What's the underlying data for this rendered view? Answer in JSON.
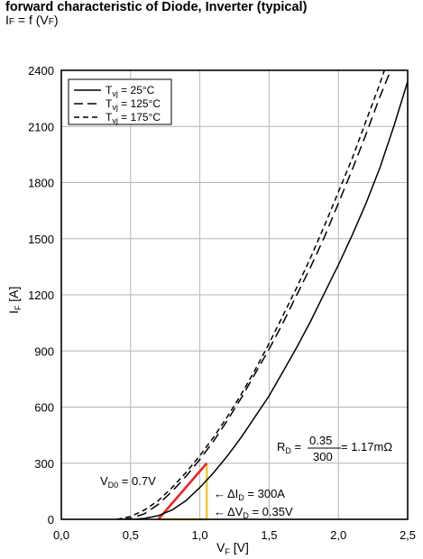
{
  "header": {
    "title": "forward characteristic of Diode, Inverter (typical)",
    "subtitle_main": "I",
    "subtitle_sub1": "F",
    "subtitle_mid": " = f (V",
    "subtitle_sub2": "F",
    "subtitle_end": ")"
  },
  "chart_data": {
    "type": "line",
    "xlabel_main": "V",
    "xlabel_sub": "F",
    "xlabel_unit": " [V]",
    "ylabel_main": "I",
    "ylabel_sub": "F",
    "ylabel_unit": " [A]",
    "xlim": [
      0,
      2.5
    ],
    "ylim": [
      0,
      2400
    ],
    "x_ticks": [
      0,
      0.5,
      1.0,
      1.5,
      2.0,
      2.5
    ],
    "x_tick_labels": [
      "0,0",
      "0,5",
      "1,0",
      "1,5",
      "2,0",
      "2,5"
    ],
    "y_ticks": [
      0,
      300,
      600,
      900,
      1200,
      1500,
      1800,
      2100,
      2400
    ],
    "y_tick_labels": [
      "0",
      "300",
      "600",
      "900",
      "1200",
      "1500",
      "1800",
      "2100",
      "2400"
    ],
    "grid": true,
    "legend_position": "top-left",
    "series": [
      {
        "name_main": "T",
        "name_sub": "vj",
        "name_rest": " = 25°C",
        "style": "solid",
        "x": [
          0.52,
          0.6,
          0.7,
          0.8,
          0.9,
          1.0,
          1.1,
          1.2,
          1.3,
          1.4,
          1.5,
          1.6,
          1.7,
          1.8,
          1.9,
          2.0,
          2.1,
          2.2,
          2.3,
          2.4,
          2.5
        ],
        "y": [
          0,
          5,
          20,
          50,
          100,
          170,
          250,
          340,
          440,
          550,
          660,
          790,
          920,
          1060,
          1210,
          1360,
          1520,
          1690,
          1880,
          2100,
          2340
        ]
      },
      {
        "name_main": "T",
        "name_sub": "vj",
        "name_rest": " = 125°C",
        "style": "dashed",
        "x": [
          0.44,
          0.5,
          0.6,
          0.7,
          0.8,
          0.9,
          1.0,
          1.1,
          1.2,
          1.3,
          1.4,
          1.5,
          1.6,
          1.7,
          1.8,
          1.9,
          2.0,
          2.1,
          2.2,
          2.3,
          2.4
        ],
        "y": [
          0,
          5,
          30,
          80,
          150,
          230,
          320,
          420,
          530,
          650,
          780,
          910,
          1050,
          1200,
          1350,
          1510,
          1690,
          1870,
          2060,
          2260,
          2460
        ]
      },
      {
        "name_main": "T",
        "name_sub": "vj",
        "name_rest": " = 175°C",
        "style": "dashed-short",
        "x": [
          0.4,
          0.5,
          0.6,
          0.7,
          0.8,
          0.9,
          1.0,
          1.1,
          1.2,
          1.3,
          1.4,
          1.5,
          1.6,
          1.7,
          1.8,
          1.9,
          2.0,
          2.1,
          2.2,
          2.3,
          2.35
        ],
        "y": [
          0,
          15,
          50,
          100,
          170,
          250,
          340,
          440,
          550,
          670,
          800,
          940,
          1090,
          1240,
          1400,
          1570,
          1750,
          1930,
          2130,
          2330,
          2440
        ]
      }
    ],
    "annotations": {
      "vd0_main": "V",
      "vd0_sub": "D0",
      "vd0_rest": " = 0.7V",
      "di_arrow": "←",
      "di_main": "ΔI",
      "di_sub": "D",
      "di_rest": " = 300A",
      "dv_arrow": "←",
      "dv_main": "ΔV",
      "dv_sub": "D",
      "dv_rest": " = 0.35V",
      "rd_main": "R",
      "rd_sub": "D",
      "rd_eq": " = ",
      "rd_num": "0.35",
      "rd_den": "300",
      "rd_rest": " = 1.17mΩ",
      "line_color": "#e8262b",
      "triangle_color": "#f5c518"
    }
  }
}
